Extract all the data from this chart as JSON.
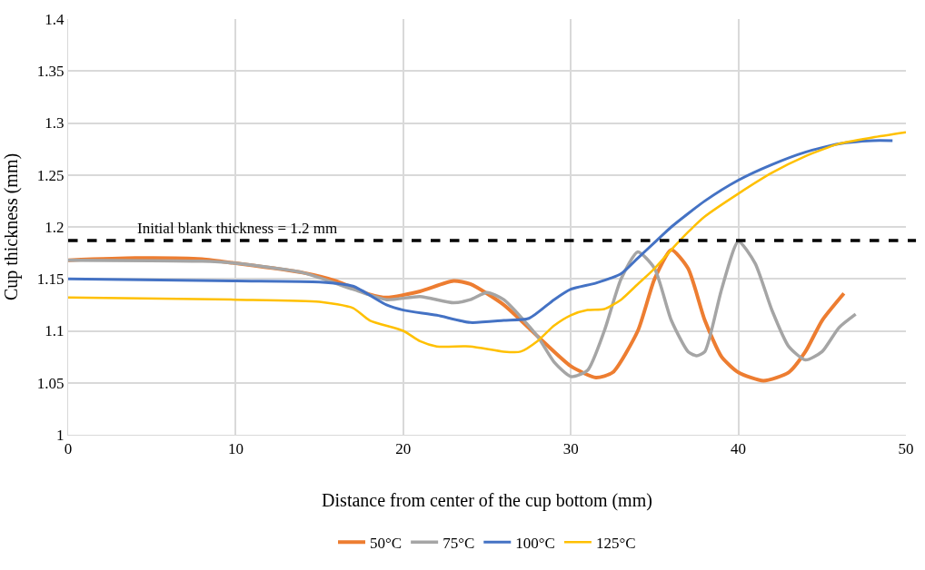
{
  "chart_data": {
    "type": "line",
    "xlabel": "Distance from center of the cup bottom (mm)",
    "ylabel": "Cup thickness (mm)",
    "xlim": [
      0,
      50
    ],
    "xticks": [
      0,
      10,
      20,
      30,
      40,
      50
    ],
    "ylim": [
      1,
      1.4
    ],
    "yticks": [
      1,
      1.05,
      1.1,
      1.15,
      1.2,
      1.25,
      1.3,
      1.35,
      1.4
    ],
    "grid": true,
    "legend": "bottom",
    "marker": "none",
    "line_style": "solid",
    "ref_lines": [
      {
        "axis": "y",
        "value": 1.187,
        "label": "Initial blank thickness = 1.2 mm",
        "color": "#000000",
        "line_style": "dashed"
      }
    ],
    "series": [
      {
        "name": "50°C",
        "color": "#ed7d31",
        "x": [
          0,
          4,
          8,
          10,
          14,
          16,
          18,
          19,
          21,
          23,
          24,
          26,
          28,
          30,
          31.5,
          32.5,
          34,
          35,
          36,
          37,
          38,
          39,
          40,
          41.5,
          43,
          44,
          45,
          46.3
        ],
        "values": [
          1.168,
          1.17,
          1.169,
          1.165,
          1.156,
          1.148,
          1.135,
          1.132,
          1.138,
          1.148,
          1.145,
          1.125,
          1.095,
          1.066,
          1.055,
          1.06,
          1.1,
          1.15,
          1.178,
          1.16,
          1.11,
          1.075,
          1.06,
          1.052,
          1.06,
          1.08,
          1.11,
          1.136
        ]
      },
      {
        "name": "75°C",
        "color": "#a5a5a5",
        "x": [
          0,
          8,
          10,
          14,
          17,
          19,
          21,
          23,
          24,
          25,
          26,
          28,
          29,
          30,
          31,
          32,
          33,
          34,
          35,
          36,
          37,
          37.5,
          38,
          39,
          40,
          41,
          42,
          43,
          44,
          45,
          46,
          47
        ],
        "values": [
          1.168,
          1.167,
          1.165,
          1.156,
          1.14,
          1.13,
          1.133,
          1.127,
          1.13,
          1.137,
          1.13,
          1.095,
          1.07,
          1.056,
          1.062,
          1.1,
          1.15,
          1.176,
          1.16,
          1.11,
          1.08,
          1.076,
          1.08,
          1.14,
          1.186,
          1.165,
          1.12,
          1.085,
          1.072,
          1.08,
          1.103,
          1.116
        ]
      },
      {
        "name": "100°C",
        "color": "#4472c4",
        "x": [
          0,
          10,
          15,
          17,
          19,
          20,
          22,
          24,
          26,
          27.5,
          29,
          30,
          31.5,
          33,
          34,
          35,
          36,
          38,
          40,
          42,
          44,
          46,
          48,
          49.2
        ],
        "values": [
          1.15,
          1.148,
          1.147,
          1.143,
          1.125,
          1.12,
          1.115,
          1.108,
          1.11,
          1.112,
          1.13,
          1.14,
          1.146,
          1.155,
          1.17,
          1.185,
          1.2,
          1.225,
          1.245,
          1.26,
          1.272,
          1.28,
          1.283,
          1.283
        ]
      },
      {
        "name": "125°C",
        "color": "#ffc000",
        "x": [
          0,
          10,
          15,
          17,
          18,
          20,
          21,
          22,
          24,
          26,
          27,
          28,
          29,
          30,
          31,
          32,
          33,
          34,
          35,
          36,
          37,
          38,
          40,
          42,
          44,
          46,
          48,
          50
        ],
        "values": [
          1.132,
          1.13,
          1.128,
          1.122,
          1.11,
          1.1,
          1.09,
          1.085,
          1.085,
          1.08,
          1.08,
          1.09,
          1.105,
          1.115,
          1.12,
          1.121,
          1.13,
          1.145,
          1.16,
          1.178,
          1.195,
          1.21,
          1.232,
          1.252,
          1.268,
          1.28,
          1.286,
          1.291
        ]
      }
    ]
  }
}
